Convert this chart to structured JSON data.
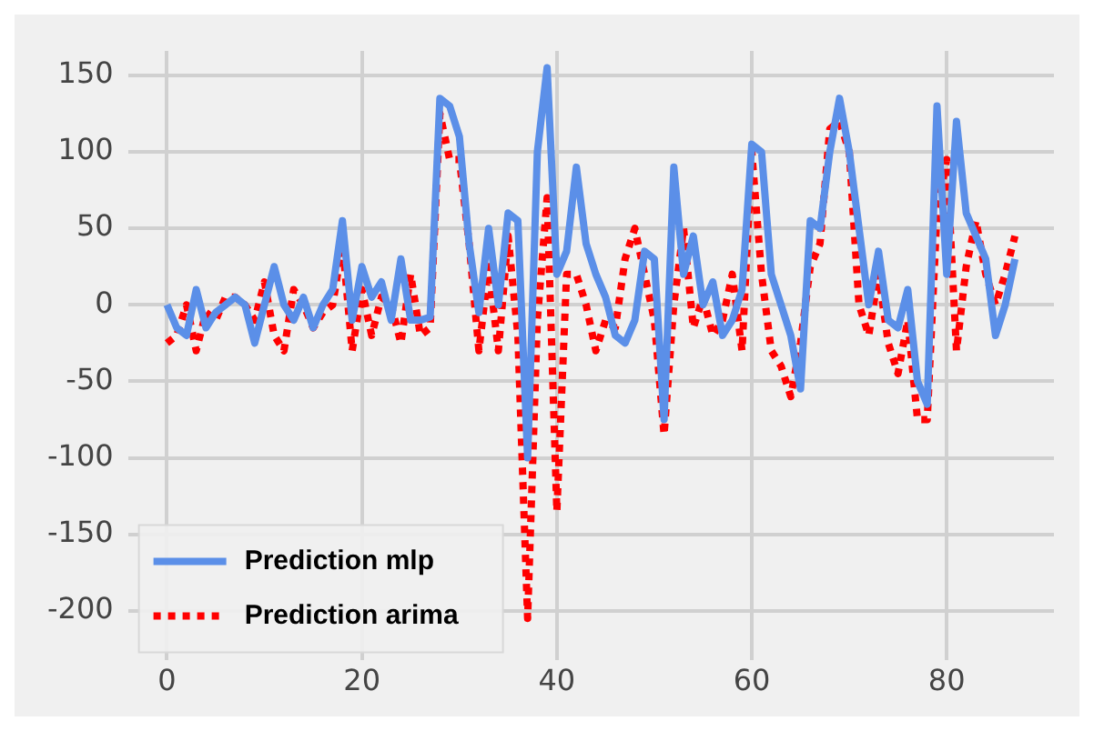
{
  "chart_data": {
    "type": "line",
    "x": [
      0,
      1,
      2,
      3,
      4,
      5,
      6,
      7,
      8,
      9,
      10,
      11,
      12,
      13,
      14,
      15,
      16,
      17,
      18,
      19,
      20,
      21,
      22,
      23,
      24,
      25,
      26,
      27,
      28,
      29,
      30,
      31,
      32,
      33,
      34,
      35,
      36,
      37,
      38,
      39,
      40,
      41,
      42,
      43,
      44,
      45,
      46,
      47,
      48,
      49,
      50,
      51,
      52,
      53,
      54,
      55,
      56,
      57,
      58,
      59,
      60,
      61,
      62,
      63,
      64,
      65,
      66,
      67,
      68,
      69,
      70,
      71,
      72,
      73,
      74,
      75,
      76,
      77,
      78,
      79,
      80,
      81,
      82,
      83,
      84,
      85,
      86,
      87
    ],
    "series": [
      {
        "name": "Prediction mlp",
        "color": "#5b8fe8",
        "line_style": "solid",
        "values": [
          0,
          -15,
          -20,
          10,
          -15,
          -5,
          0,
          5,
          0,
          -25,
          0,
          25,
          0,
          -10,
          5,
          -15,
          0,
          10,
          55,
          -10,
          25,
          5,
          15,
          -10,
          30,
          -10,
          -10,
          -8,
          135,
          130,
          110,
          40,
          -5,
          50,
          0,
          60,
          55,
          -100,
          100,
          155,
          20,
          35,
          90,
          40,
          20,
          5,
          -20,
          -25,
          -10,
          35,
          30,
          -75,
          90,
          20,
          45,
          0,
          15,
          -20,
          -10,
          10,
          105,
          100,
          20,
          0,
          -20,
          -55,
          55,
          50,
          100,
          135,
          100,
          50,
          0,
          35,
          -10,
          -15,
          10,
          -50,
          -65,
          130,
          20,
          120,
          60,
          45,
          30,
          -20,
          0,
          30
        ]
      },
      {
        "name": "Prediction arima",
        "color": "#ff0000",
        "line_style": "dotted",
        "values": [
          -25,
          -20,
          0,
          -30,
          -5,
          -10,
          5,
          5,
          0,
          -10,
          15,
          -20,
          -30,
          10,
          0,
          -15,
          -5,
          0,
          40,
          -30,
          10,
          -20,
          5,
          0,
          -25,
          20,
          -20,
          -15,
          125,
          95,
          95,
          40,
          -30,
          25,
          -30,
          45,
          -20,
          -205,
          -10,
          70,
          -135,
          20,
          20,
          0,
          -30,
          -10,
          -15,
          30,
          50,
          20,
          -10,
          -85,
          0,
          50,
          -15,
          5,
          -20,
          -10,
          20,
          -30,
          100,
          20,
          -30,
          -40,
          -60,
          -25,
          25,
          40,
          115,
          120,
          100,
          0,
          -20,
          20,
          -25,
          -45,
          -10,
          -75,
          -75,
          60,
          95,
          -30,
          25,
          55,
          20,
          0,
          20,
          45
        ]
      }
    ],
    "xlim": [
      -4,
      91
    ],
    "xticks": [
      0,
      20,
      40,
      60,
      80
    ],
    "ylim": [
      -232,
      166
    ],
    "yticks": [
      -200,
      -150,
      -100,
      -50,
      0,
      50,
      100,
      150
    ],
    "grid": true,
    "legend": "bottom left",
    "marker": "none"
  }
}
